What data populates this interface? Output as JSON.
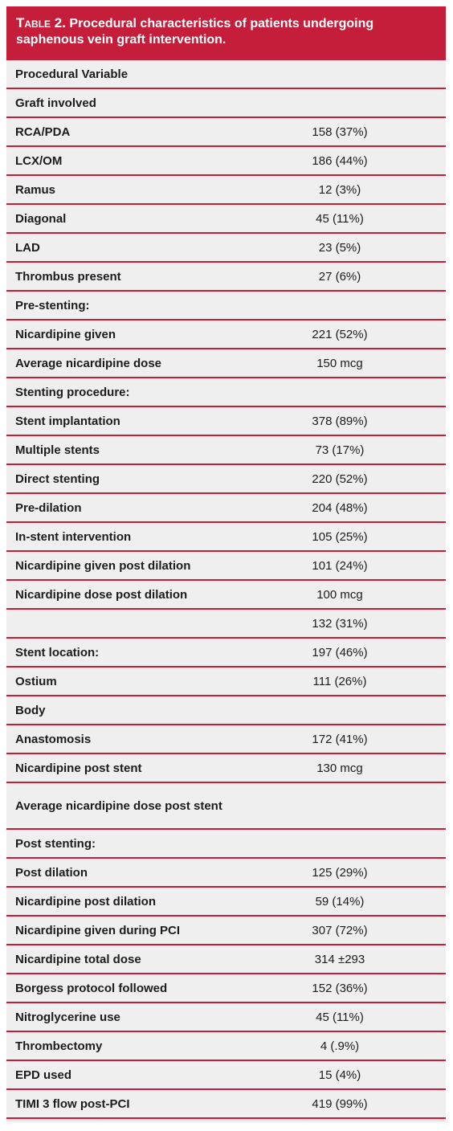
{
  "table": {
    "title_lead": "Table 2.",
    "title_rest": " Procedural characteristics of patients undergoing saphenous vein graft intervention.",
    "colors": {
      "header": "#c41e3a",
      "rule": "#c41e3a",
      "background": "#efefef"
    },
    "rows": [
      {
        "label": "Procedural Variable",
        "value": ""
      },
      {
        "label": "Graft involved",
        "value": ""
      },
      {
        "label": "RCA/PDA",
        "value": "158 (37%)"
      },
      {
        "label": "LCX/OM",
        "value": "186 (44%)"
      },
      {
        "label": "Ramus",
        "value": "12 (3%)"
      },
      {
        "label": "Diagonal",
        "value": "45 (11%)"
      },
      {
        "label": "LAD",
        "value": "23 (5%)"
      },
      {
        "label": "Thrombus present",
        "value": "27 (6%)"
      },
      {
        "label": "Pre-stenting:",
        "value": ""
      },
      {
        "label": "Nicardipine given",
        "value": "221 (52%)"
      },
      {
        "label": "Average nicardipine dose",
        "value": "150 mcg"
      },
      {
        "label": "Stenting procedure:",
        "value": ""
      },
      {
        "label": "Stent implantation",
        "value": "378 (89%)"
      },
      {
        "label": "Multiple stents",
        "value": "73 (17%)"
      },
      {
        "label": "Direct stenting",
        "value": "220 (52%)"
      },
      {
        "label": "Pre-dilation",
        "value": "204 (48%)"
      },
      {
        "label": "In-stent intervention",
        "value": "105 (25%)"
      },
      {
        "label": "Nicardipine given post dilation",
        "value": "101 (24%)"
      },
      {
        "label": "Nicardipine dose post dilation",
        "value": "100 mcg"
      },
      {
        "label": "",
        "value": "132 (31%)"
      },
      {
        "label": "Stent location:",
        "value": "197 (46%)"
      },
      {
        "label": "Ostium",
        "value": "111 (26%)"
      },
      {
        "label": "Body",
        "value": ""
      },
      {
        "label": "Anastomosis",
        "value": "172 (41%)"
      },
      {
        "label": "Nicardipine post stent",
        "value": "130 mcg"
      },
      {
        "label": "Average nicardipine dose post stent",
        "value": ""
      },
      {
        "label": "Post stenting:",
        "value": ""
      },
      {
        "label": "Post dilation",
        "value": "125 (29%)"
      },
      {
        "label": "Nicardipine post dilation",
        "value": "59 (14%)"
      },
      {
        "label": "Nicardipine given during PCI",
        "value": "307 (72%)"
      },
      {
        "label": "Nicardipine total dose",
        "value": "314 ±293"
      },
      {
        "label": "Borgess protocol followed",
        "value": "152 (36%)"
      },
      {
        "label": "Nitroglycerine use",
        "value": "45 (11%)"
      },
      {
        "label": "Thrombectomy",
        "value": "4 (.9%)"
      },
      {
        "label": "EPD used",
        "value": "15 (4%)"
      },
      {
        "label": "TIMI 3 flow post-PCI",
        "value": "419 (99%)"
      }
    ]
  }
}
